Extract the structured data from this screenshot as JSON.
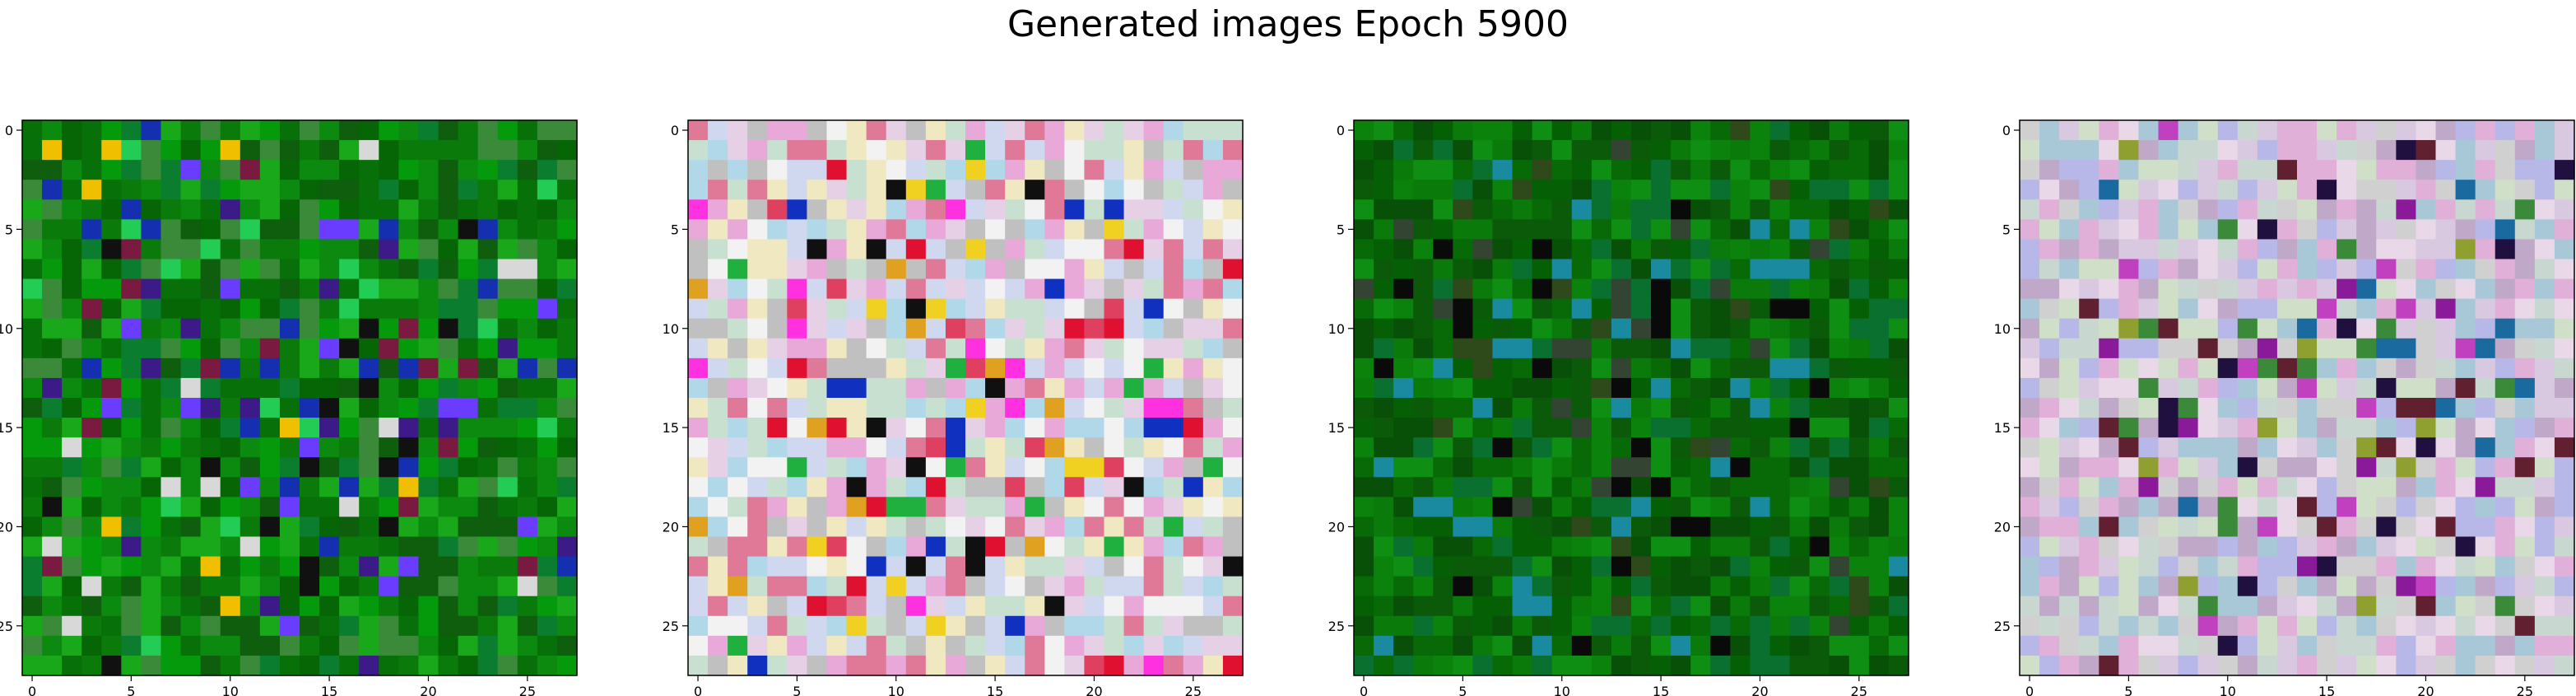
{
  "title": "Generated images Epoch 5900",
  "chart_data": [
    {
      "type": "heatmap",
      "name": "image-1",
      "grid": [
        28,
        28
      ],
      "palette": [
        "#0a7a0a",
        "#087008",
        "#066606",
        "#0c8a10",
        "#049a0c",
        "#0e5e0e",
        "#18a81a",
        "#0b7d2e",
        "#3a8a3a"
      ],
      "accents": [
        "#111111",
        "#d8d8d8",
        "#6a3cff",
        "#1430b0",
        "#f0c000",
        "#7a1a40",
        "#22cc55",
        "#3c1a88"
      ],
      "x_ticks": [
        0,
        5,
        10,
        15,
        20,
        25
      ],
      "y_ticks": [
        0,
        5,
        10,
        15,
        20,
        25
      ]
    },
    {
      "type": "heatmap",
      "name": "image-2",
      "grid": [
        28,
        28
      ],
      "palette": [
        "#f2f2f2",
        "#e6d0e6",
        "#c8e0d0",
        "#e8a8d8",
        "#d0d8f0",
        "#f0e8c0",
        "#b0d8e8",
        "#e07898",
        "#c0c0c0"
      ],
      "accents": [
        "#e01030",
        "#ff30e0",
        "#f0d020",
        "#101010",
        "#1030c0",
        "#e0a020",
        "#20b040",
        "#e04060"
      ],
      "x_ticks": [
        0,
        5,
        10,
        15,
        20,
        25
      ],
      "y_ticks": [
        0,
        5,
        10,
        15,
        20,
        25
      ]
    },
    {
      "type": "heatmap",
      "name": "image-3",
      "grid": [
        28,
        28
      ],
      "palette": [
        "#0a7a0a",
        "#076a07",
        "#056005",
        "#0b820b",
        "#0a5a0a",
        "#0e8e12",
        "#085008",
        "#0a7030"
      ],
      "accents": [
        "#0a0a0a",
        "#1a8aa0",
        "#334433",
        "#2e4a1a"
      ],
      "x_ticks": [
        0,
        5,
        10,
        15,
        20,
        25
      ],
      "y_ticks": [
        0,
        5,
        10,
        15,
        20,
        25
      ]
    },
    {
      "type": "heatmap",
      "name": "image-4",
      "grid": [
        28,
        28
      ],
      "palette": [
        "#d8c8e0",
        "#c8d8d0",
        "#e0b0d8",
        "#b8b8e8",
        "#d0e0c8",
        "#c0a8c8",
        "#e8d8e8",
        "#a8c8d8",
        "#d0d0d0"
      ],
      "accents": [
        "#201040",
        "#8a1a9a",
        "#3a8a3a",
        "#1a6aa0",
        "#602030",
        "#c040c0",
        "#90a030"
      ],
      "x_ticks": [
        0,
        5,
        10,
        15,
        20,
        25
      ],
      "y_ticks": [
        0,
        5,
        10,
        15,
        20,
        25
      ]
    }
  ]
}
